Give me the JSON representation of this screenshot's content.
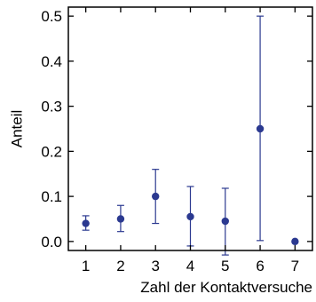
{
  "chart_data": {
    "type": "scatter",
    "title": "",
    "xlabel": "Zahl der Kontaktversuche",
    "ylabel": "Anteil",
    "xlim": [
      0.5,
      7.5
    ],
    "ylim": [
      -0.02,
      0.52
    ],
    "x_ticks": [
      1,
      2,
      3,
      4,
      5,
      6,
      7
    ],
    "x_tick_labels": [
      "1",
      "2",
      "3",
      "4",
      "5",
      "6",
      "7"
    ],
    "y_ticks": [
      0.0,
      0.1,
      0.2,
      0.3,
      0.4,
      0.5
    ],
    "y_tick_labels": [
      "0.0",
      "0.1",
      "0.2",
      "0.3",
      "0.4",
      "0.5"
    ],
    "grid": false,
    "marker_color": "#2b3990",
    "points": [
      {
        "x": 1,
        "y": 0.04,
        "lower": 0.025,
        "upper": 0.057
      },
      {
        "x": 2,
        "y": 0.05,
        "lower": 0.022,
        "upper": 0.08
      },
      {
        "x": 3,
        "y": 0.1,
        "lower": 0.04,
        "upper": 0.16
      },
      {
        "x": 4,
        "y": 0.055,
        "lower": -0.01,
        "upper": 0.122
      },
      {
        "x": 5,
        "y": 0.045,
        "lower": -0.03,
        "upper": 0.118
      },
      {
        "x": 6,
        "y": 0.25,
        "lower": 0.002,
        "upper": 0.5
      },
      {
        "x": 7,
        "y": 0.0,
        "lower": 0.0,
        "upper": 0.0
      }
    ]
  }
}
